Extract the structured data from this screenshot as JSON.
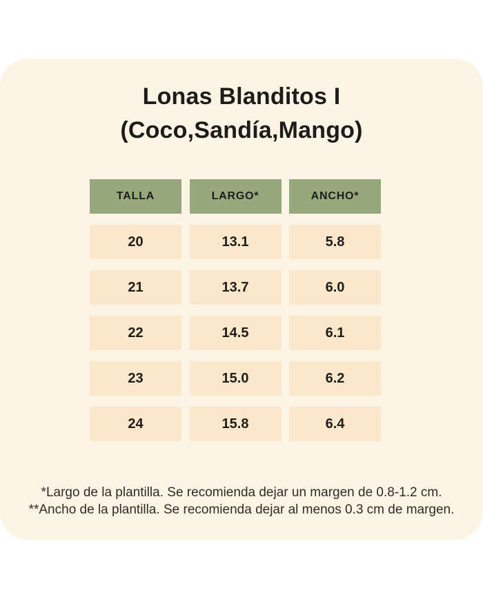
{
  "title": {
    "line1": "Lonas Blanditos I",
    "line2": "(Coco,Sandía,Mango)"
  },
  "chart_data": {
    "type": "table",
    "title": "Lonas Blanditos I (Coco,Sandía,Mango)",
    "columns": [
      "TALLA",
      "LARGO*",
      "ANCHO*"
    ],
    "rows": [
      [
        "20",
        "13.1",
        "5.8"
      ],
      [
        "21",
        "13.7",
        "6.0"
      ],
      [
        "22",
        "14.5",
        "6.1"
      ],
      [
        "23",
        "15.0",
        "6.2"
      ],
      [
        "24",
        "15.8",
        "6.4"
      ]
    ],
    "footnotes": [
      "*Largo de la plantilla. Se recomienda dejar un margen de 0.8-1.2 cm.",
      "**Ancho de la plantilla. Se recomienda dejar al menos 0.3 cm de margen."
    ]
  },
  "colors": {
    "page_background": "#ffffff",
    "card_background": "#fdf4e6",
    "header_cell": "#97a87d",
    "data_cell": "#fbe8cb",
    "title_text": "#1e1c1a",
    "body_text": "#2e2a26"
  }
}
